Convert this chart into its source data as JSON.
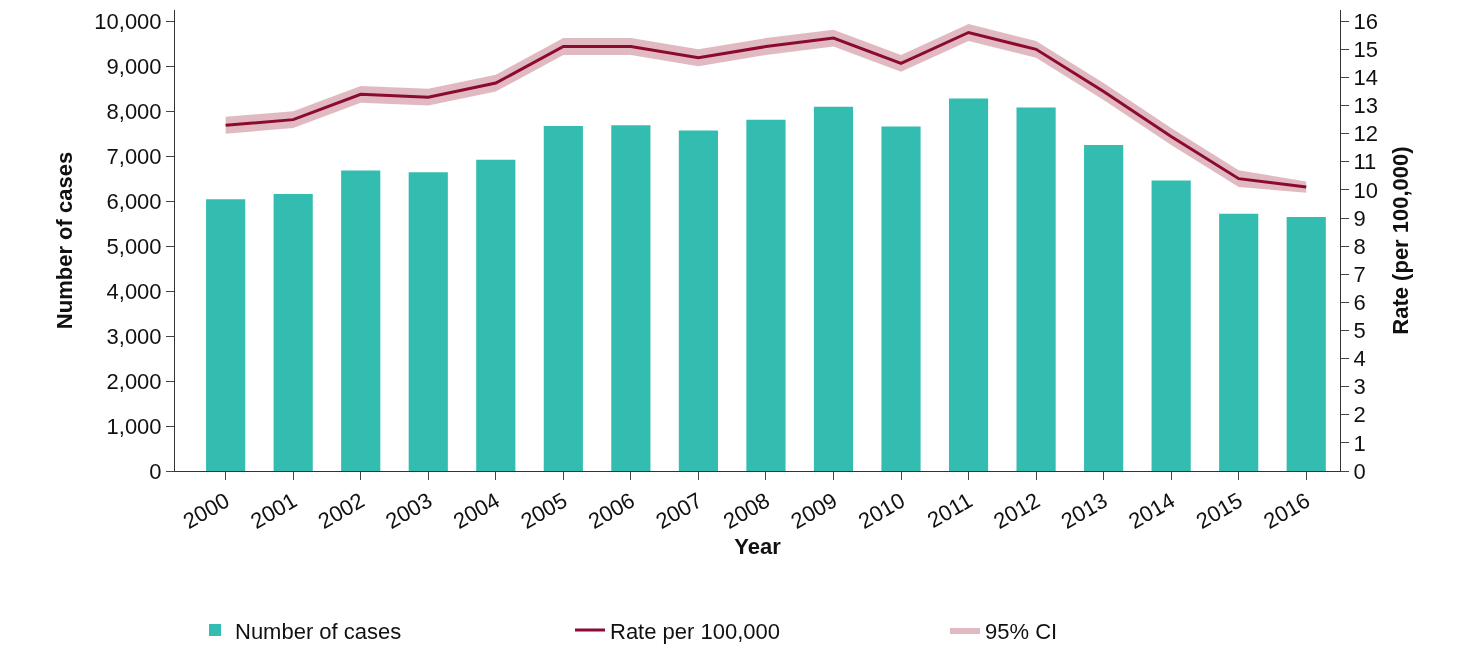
{
  "chart_data": {
    "type": "bar",
    "xlabel": "Year",
    "ylabel": "Number of cases",
    "y2label": "Rate (per 100,000)",
    "categories": [
      "2000",
      "2001",
      "2002",
      "2003",
      "2004",
      "2005",
      "2006",
      "2007",
      "2008",
      "2009",
      "2010",
      "2011",
      "2012",
      "2013",
      "2014",
      "2015",
      "2016"
    ],
    "series": [
      {
        "name": "Number of cases",
        "color": "#33bdb0",
        "values": [
          6040,
          6160,
          6680,
          6640,
          6920,
          7670,
          7690,
          7570,
          7810,
          8100,
          7660,
          8280,
          8080,
          7250,
          6460,
          5720,
          5650
        ]
      },
      {
        "name": "Rate per 100,000",
        "type": "line",
        "axis": "y2",
        "color": "#8b0a32",
        "values": [
          12.3,
          12.5,
          13.4,
          13.3,
          13.8,
          15.1,
          15.1,
          14.7,
          15.1,
          15.4,
          14.5,
          15.6,
          15.0,
          13.5,
          11.9,
          10.4,
          10.1
        ],
        "lower": [
          12.0,
          12.2,
          13.1,
          13.0,
          13.5,
          14.8,
          14.8,
          14.4,
          14.8,
          15.1,
          14.2,
          15.3,
          14.7,
          13.2,
          11.6,
          10.1,
          9.9
        ],
        "upper": [
          12.6,
          12.8,
          13.7,
          13.6,
          14.1,
          15.4,
          15.4,
          15.0,
          15.4,
          15.7,
          14.8,
          15.9,
          15.3,
          13.8,
          12.2,
          10.7,
          10.3
        ]
      }
    ],
    "annotations": [
      "95% CI"
    ],
    "ylim": [
      0,
      10250
    ],
    "yticks": [
      {
        "value": 0,
        "label": "0"
      },
      {
        "value": 1000,
        "label": "1,000"
      },
      {
        "value": 2000,
        "label": "2,000"
      },
      {
        "value": 3000,
        "label": "3,000"
      },
      {
        "value": 4000,
        "label": "4,000"
      },
      {
        "value": 5000,
        "label": "5,000"
      },
      {
        "value": 6000,
        "label": "6,000"
      },
      {
        "value": 7000,
        "label": "7,000"
      },
      {
        "value": 8000,
        "label": "8,000"
      },
      {
        "value": 9000,
        "label": "9,000"
      },
      {
        "value": 10000,
        "label": "10,000"
      }
    ],
    "y2lim": [
      0,
      16.4
    ],
    "y2ticks": [
      0,
      1,
      2,
      3,
      4,
      5,
      6,
      7,
      8,
      9,
      10,
      11,
      12,
      13,
      14,
      15,
      16
    ],
    "legend": "bottom"
  }
}
